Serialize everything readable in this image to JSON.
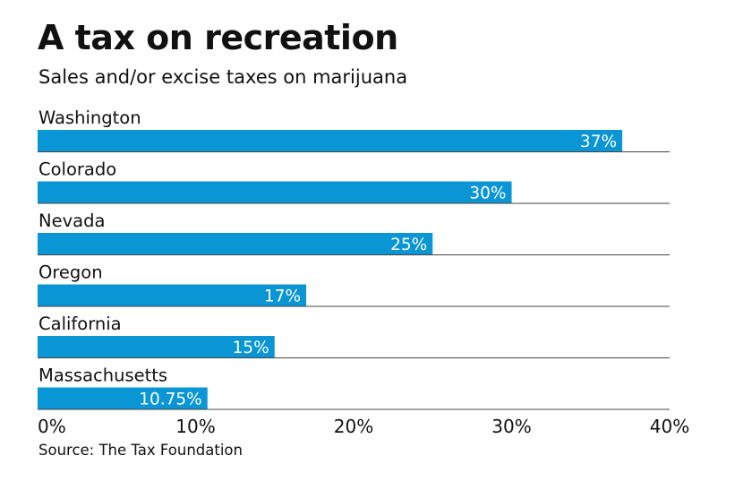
{
  "chart_data": {
    "type": "bar",
    "orientation": "horizontal",
    "title": "A tax on recreation",
    "subtitle": "Sales and/or excise taxes on marijuana",
    "source": "Source: The Tax Foundation",
    "categories": [
      "Washington",
      "Colorado",
      "Nevada",
      "Oregon",
      "California",
      "Massachusetts"
    ],
    "values": [
      37,
      30,
      25,
      17,
      15,
      10.75
    ],
    "value_labels": [
      "37%",
      "30%",
      "25%",
      "17%",
      "15%",
      "10.75%"
    ],
    "xlim": [
      0,
      40
    ],
    "ticks": [
      0,
      10,
      20,
      30,
      40
    ],
    "tick_labels": [
      "0%",
      "10%",
      "20%",
      "30%",
      "40%"
    ],
    "xlabel": "",
    "ylabel": "",
    "bar_color": "#0a95d5"
  }
}
